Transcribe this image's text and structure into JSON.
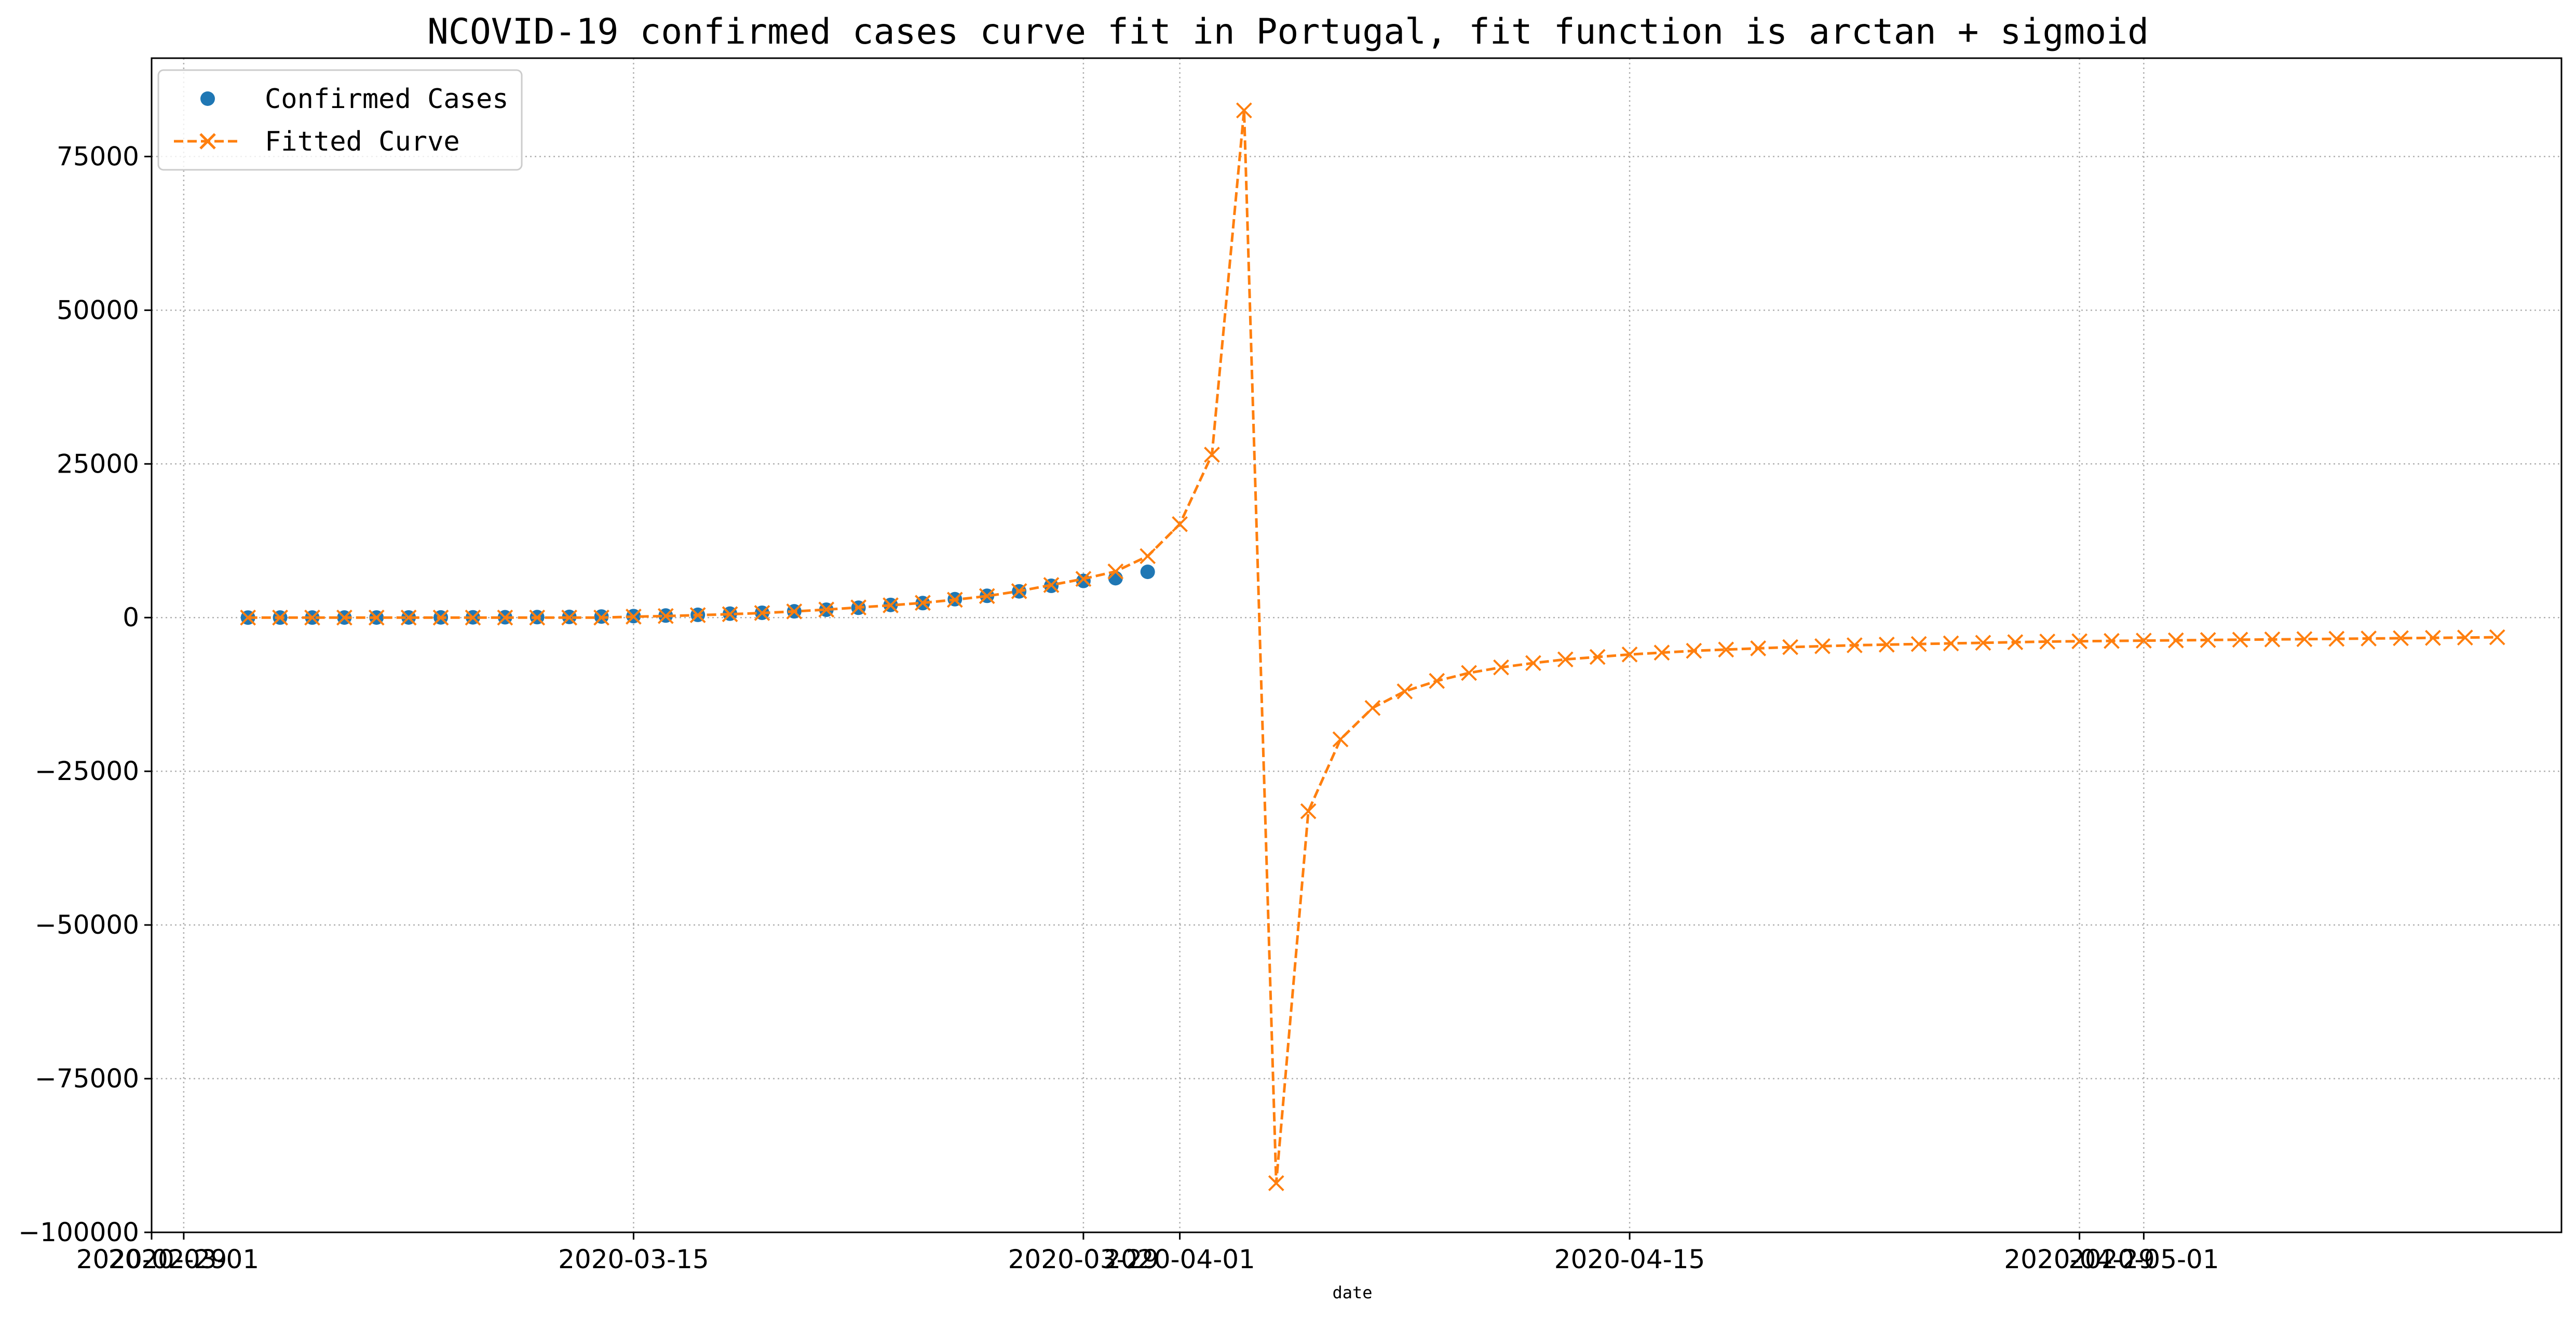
{
  "chart_data": {
    "type": "line",
    "title": "NCOVID-19 confirmed cases curve fit in Portugal, fit function is arctan + sigmoid",
    "xlabel": "date",
    "ylabel": "",
    "xlim": [
      "2020-02-29",
      "2020-05-14"
    ],
    "ylim": [
      -100000,
      91000
    ],
    "x_ticks": [
      "2020-02-29",
      "2020-03-01",
      "2020-03-15",
      "2020-03-29",
      "2020-04-01",
      "2020-04-15",
      "2020-04-29",
      "2020-05-01"
    ],
    "x_tick_labels": [
      "2020-02-29",
      "2020-03-01",
      "2020-03-15",
      "2020-03-29",
      "2020-04-01",
      "2020-04-15",
      "2020-04-29",
      "2020-05-01"
    ],
    "y_ticks": [
      -100000,
      -75000,
      -50000,
      -25000,
      0,
      25000,
      50000,
      75000
    ],
    "y_tick_labels": [
      "−100000",
      "−75000",
      "−50000",
      "−25000",
      "0",
      "25000",
      "50000",
      "75000"
    ],
    "grid": true,
    "legend_position": "upper-left",
    "series": [
      {
        "name": "Confirmed Cases",
        "style": "markers",
        "marker": "circle",
        "color": "#1f77b4",
        "x": [
          "2020-03-03",
          "2020-03-04",
          "2020-03-05",
          "2020-03-06",
          "2020-03-07",
          "2020-03-08",
          "2020-03-09",
          "2020-03-10",
          "2020-03-11",
          "2020-03-12",
          "2020-03-13",
          "2020-03-14",
          "2020-03-15",
          "2020-03-16",
          "2020-03-17",
          "2020-03-18",
          "2020-03-19",
          "2020-03-20",
          "2020-03-21",
          "2020-03-22",
          "2020-03-23",
          "2020-03-24",
          "2020-03-25",
          "2020-03-26",
          "2020-03-27",
          "2020-03-28",
          "2020-03-29",
          "2020-03-30",
          "2020-03-31"
        ],
        "y": [
          2,
          4,
          6,
          9,
          13,
          21,
          30,
          41,
          59,
          78,
          112,
          169,
          245,
          331,
          448,
          642,
          785,
          1020,
          1280,
          1600,
          2060,
          2362,
          2995,
          3544,
          4268,
          5170,
          5962,
          6408,
          7443
        ]
      },
      {
        "name": "Fitted Curve",
        "style": "dashed-line-x-markers",
        "marker": "x",
        "color": "#ff7f0e",
        "x": [
          "2020-03-03",
          "2020-03-04",
          "2020-03-05",
          "2020-03-06",
          "2020-03-07",
          "2020-03-08",
          "2020-03-09",
          "2020-03-10",
          "2020-03-11",
          "2020-03-12",
          "2020-03-13",
          "2020-03-14",
          "2020-03-15",
          "2020-03-16",
          "2020-03-17",
          "2020-03-18",
          "2020-03-19",
          "2020-03-20",
          "2020-03-21",
          "2020-03-22",
          "2020-03-23",
          "2020-03-24",
          "2020-03-25",
          "2020-03-26",
          "2020-03-27",
          "2020-03-28",
          "2020-03-29",
          "2020-03-30",
          "2020-03-31",
          "2020-04-01",
          "2020-04-02",
          "2020-04-03",
          "2020-04-04",
          "2020-04-05",
          "2020-04-06",
          "2020-04-07",
          "2020-04-08",
          "2020-04-09",
          "2020-04-10",
          "2020-04-11",
          "2020-04-12",
          "2020-04-13",
          "2020-04-14",
          "2020-04-15",
          "2020-04-16",
          "2020-04-17",
          "2020-04-18",
          "2020-04-19",
          "2020-04-20",
          "2020-04-21",
          "2020-04-22",
          "2020-04-23",
          "2020-04-24",
          "2020-04-25",
          "2020-04-26",
          "2020-04-27",
          "2020-04-28",
          "2020-04-29",
          "2020-04-30",
          "2020-05-01",
          "2020-05-02",
          "2020-05-03",
          "2020-05-04",
          "2020-05-05",
          "2020-05-06",
          "2020-05-07",
          "2020-05-08",
          "2020-05-09",
          "2020-05-10",
          "2020-05-11",
          "2020-05-12"
        ],
        "y": [
          0,
          0,
          0,
          0,
          0,
          0,
          0,
          0,
          0,
          0,
          0,
          0,
          150,
          250,
          400,
          550,
          750,
          1000,
          1300,
          1650,
          2000,
          2400,
          2900,
          3500,
          4300,
          5300,
          6300,
          7500,
          10000,
          15200,
          26500,
          82500,
          -92000,
          -31500,
          -19800,
          -14700,
          -12000,
          -10300,
          -9000,
          -8100,
          -7400,
          -6800,
          -6400,
          -6000,
          -5700,
          -5400,
          -5200,
          -5000,
          -4800,
          -4650,
          -4500,
          -4400,
          -4300,
          -4200,
          -4100,
          -4000,
          -3900,
          -3850,
          -3800,
          -3750,
          -3700,
          -3650,
          -3600,
          -3550,
          -3500,
          -3450,
          -3400,
          -3350,
          -3300,
          -3250,
          -3200
        ]
      }
    ]
  }
}
